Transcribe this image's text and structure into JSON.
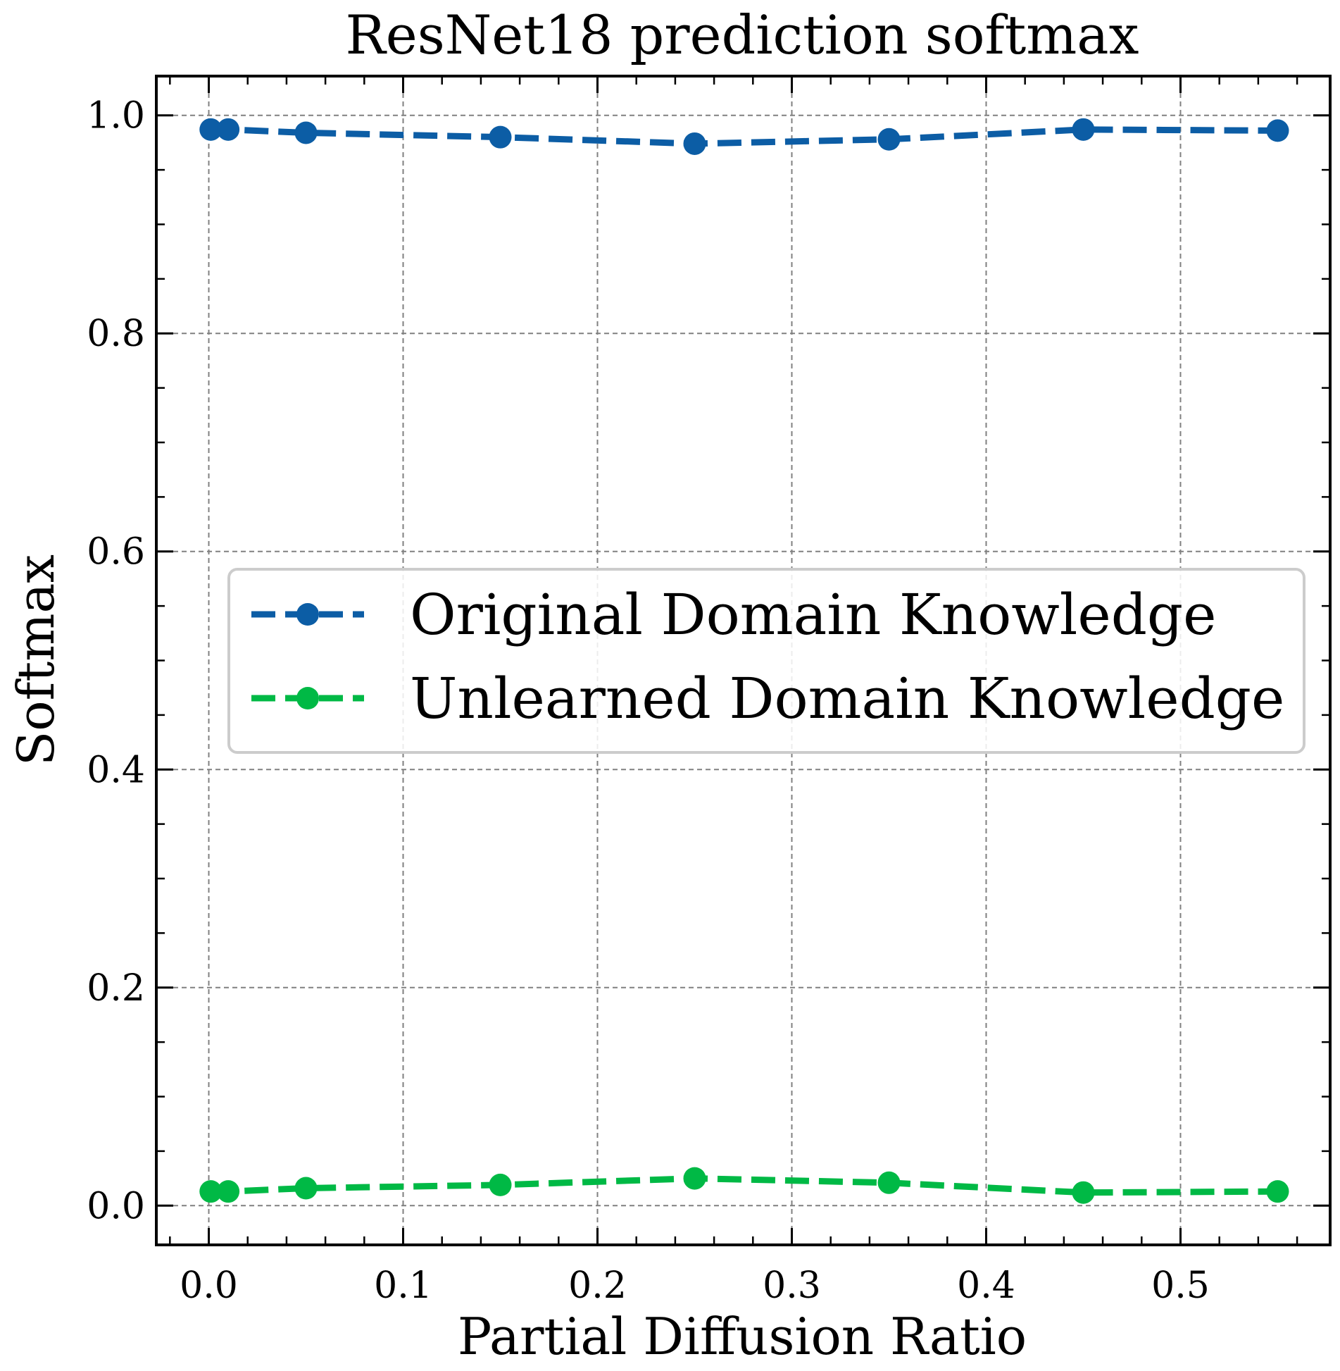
{
  "chart_data": {
    "type": "line",
    "title": "ResNet18 prediction softmax",
    "xlabel": "Partial Diffusion Ratio",
    "ylabel": "Softmax",
    "xlim": [
      -0.027,
      0.577
    ],
    "ylim": [
      -0.036,
      1.036
    ],
    "x_ticks": [
      0.0,
      0.1,
      0.2,
      0.3,
      0.4,
      0.5
    ],
    "x_tick_labels": [
      "0.0",
      "0.1",
      "0.2",
      "0.3",
      "0.4",
      "0.5"
    ],
    "y_ticks": [
      0.0,
      0.2,
      0.4,
      0.6,
      0.8,
      1.0
    ],
    "y_tick_labels": [
      "0.0",
      "0.2",
      "0.4",
      "0.6",
      "0.8",
      "1.0"
    ],
    "grid": true,
    "legend_position": "center-right",
    "x": [
      0.001,
      0.01,
      0.05,
      0.15,
      0.25,
      0.35,
      0.45,
      0.55
    ],
    "series": [
      {
        "name": "Original Domain Knowledge",
        "color": "#0c5da5",
        "values": [
          0.987,
          0.987,
          0.984,
          0.98,
          0.974,
          0.978,
          0.987,
          0.986
        ]
      },
      {
        "name": "Unlearned Domain Knowledge",
        "color": "#00b945",
        "values": [
          0.013,
          0.013,
          0.016,
          0.019,
          0.025,
          0.021,
          0.012,
          0.013
        ]
      }
    ]
  }
}
